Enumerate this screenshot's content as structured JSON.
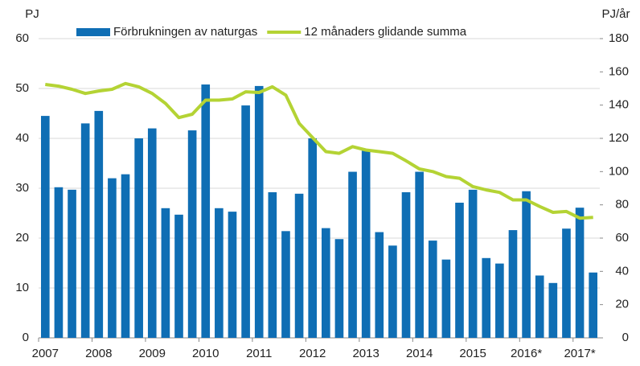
{
  "chart_data": {
    "type": "bar-line",
    "ylabel": "PJ",
    "y2label": "PJ/år",
    "categories": [
      "2007",
      null,
      null,
      null,
      "2008",
      null,
      null,
      null,
      "2009",
      null,
      null,
      null,
      "2010",
      null,
      null,
      null,
      "2011",
      null,
      null,
      null,
      "2012",
      null,
      null,
      null,
      "2013",
      null,
      null,
      null,
      "2014",
      null,
      null,
      null,
      "2015",
      null,
      null,
      null,
      "2016*",
      null,
      null,
      null,
      "2017*",
      null
    ],
    "series": [
      {
        "name": "Förbrukningen av naturgas",
        "type": "bar",
        "color": "#0f6eb4",
        "values": [
          44.5,
          30.2,
          29.7,
          43,
          45.5,
          32,
          32.8,
          40,
          42,
          26,
          24.7,
          41.6,
          50.8,
          26,
          25.3,
          46.6,
          50.5,
          29.2,
          21.4,
          28.9,
          40,
          22,
          19.8,
          33.3,
          37.5,
          21.2,
          18.5,
          29.2,
          33.3,
          19.5,
          15.7,
          27.1,
          29.7,
          16,
          14.9,
          21.6,
          29.4,
          12.5,
          11,
          21.9,
          26.1,
          13.1
        ]
      },
      {
        "name": "12 månaders glidande summa",
        "type": "line",
        "axis": "y2",
        "color": "#b4d334",
        "values": [
          152.4,
          151.4,
          149.5,
          147,
          148.5,
          149.5,
          153,
          151,
          147,
          141,
          132.5,
          134.5,
          143,
          143,
          143.7,
          148,
          147.6,
          151,
          146,
          129,
          120.5,
          112,
          111,
          115,
          113,
          112,
          111,
          106.5,
          101.6,
          100,
          97,
          96,
          91,
          89,
          87.5,
          83,
          83,
          79,
          75.5,
          76,
          72,
          72.5
        ]
      }
    ],
    "ylim": [
      0,
      60
    ],
    "yticks": [
      0,
      10,
      20,
      30,
      40,
      50,
      60
    ],
    "y2lim": [
      0,
      180
    ],
    "y2ticks": [
      0,
      20,
      40,
      60,
      80,
      100,
      120,
      140,
      160,
      180
    ],
    "grid": true
  }
}
